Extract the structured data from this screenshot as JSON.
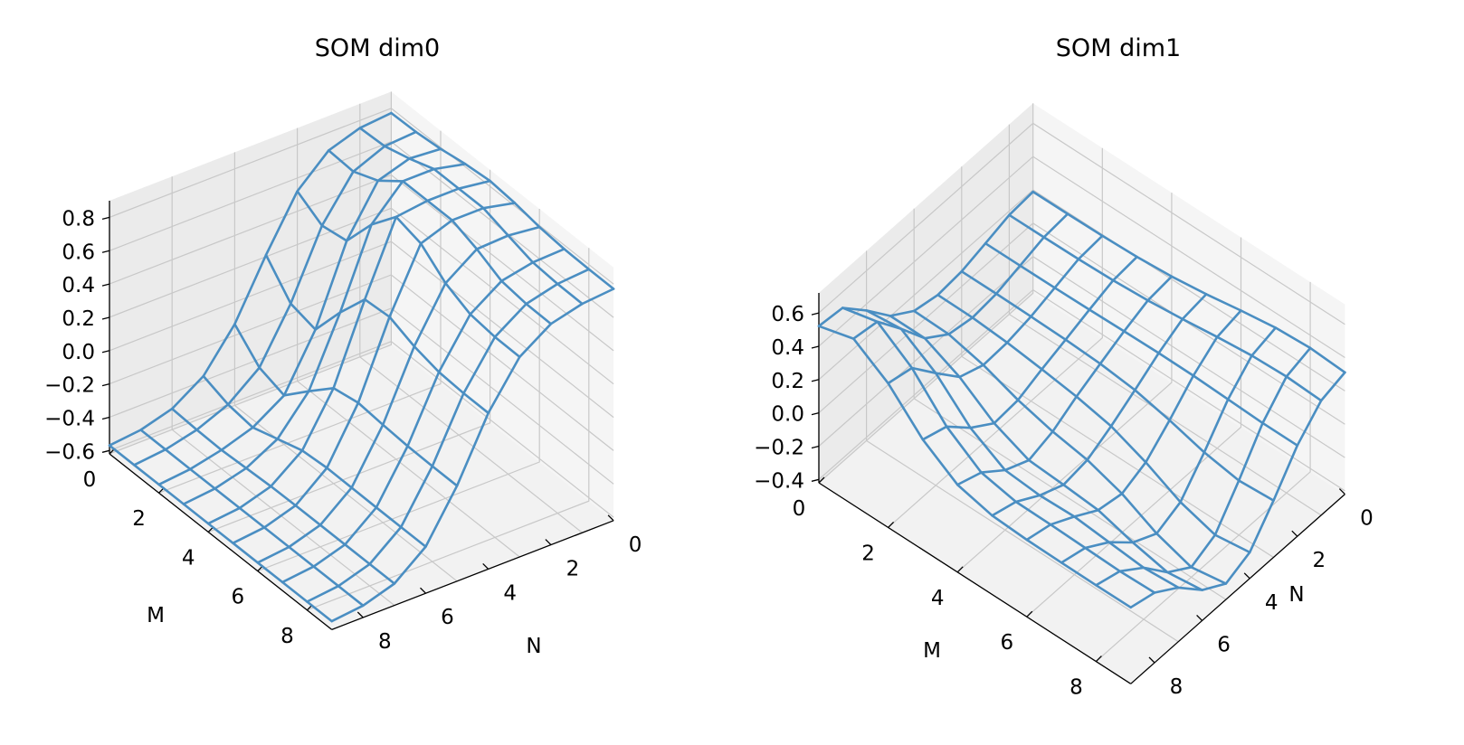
{
  "chart_data": [
    {
      "type": "wireframe",
      "title": "SOM dim0",
      "xlabel": "M",
      "ylabel": "N",
      "x_ticks": [
        "0",
        "2",
        "4",
        "6",
        "8"
      ],
      "y_ticks": [
        "0",
        "2",
        "4",
        "6",
        "8"
      ],
      "z_ticks": [
        "−0.6",
        "−0.4",
        "−0.2",
        "0.0",
        "0.2",
        "0.4",
        "0.6",
        "0.8"
      ],
      "xlim": [
        0,
        9
      ],
      "ylim": [
        0,
        9
      ],
      "zlim": [
        -0.62,
        0.9
      ],
      "view": "elevation ~30°, azimuth ~-135° (M decreases to upper-left, N decreases to right)",
      "color": "#4a8ec2",
      "grid": true,
      "surface": "smooth step: about 0.78 at low N, falling to about -0.58 at high N, with a ridge near N=2, M=4 and a dip near M=2, N=4"
    },
    {
      "type": "wireframe",
      "title": "SOM dim1",
      "xlabel": "M",
      "ylabel": "N",
      "x_ticks": [
        "0",
        "2",
        "4",
        "6",
        "8"
      ],
      "y_ticks": [
        "0",
        "2",
        "4",
        "6",
        "8"
      ],
      "z_ticks": [
        "−0.4",
        "−0.2",
        "0.0",
        "0.2",
        "0.4",
        "0.6"
      ],
      "xlim": [
        0,
        9
      ],
      "ylim": [
        0,
        9
      ],
      "zlim": [
        -0.42,
        0.72
      ],
      "view": "elevation ~45°, azimuth ~-145° (M decreases to upper-left, N decreases to upper-right)",
      "color": "#4a8ec2",
      "grid": true,
      "surface": "peak about 0.67 at low M / high N, saddle around the center, trough about -0.40 at high M / mid N, rising to about 0.35 toward low N"
    }
  ]
}
